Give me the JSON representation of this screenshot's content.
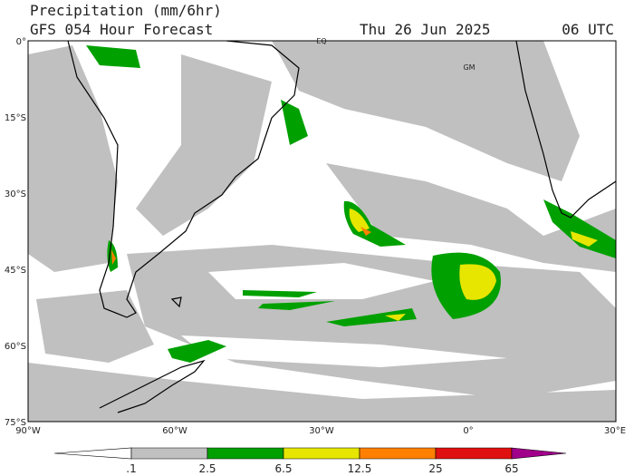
{
  "header": {
    "title": "Precipitation (mm/6hr)",
    "subtitle": "GFS 054 Hour Forecast",
    "date": "Thu 26 Jun 2025",
    "time": "06 UTC"
  },
  "map": {
    "lat_labels": [
      "0°",
      "15°S",
      "30°S",
      "45°S",
      "60°S",
      "75°S"
    ],
    "lon_labels": [
      "90°W",
      "60°W",
      "30°W",
      "0°",
      "30°E"
    ],
    "place_labels": [
      "EQ",
      "GM"
    ]
  },
  "colorbar": {
    "labels": [
      ".1",
      "2.5",
      "6.5",
      "12.5",
      "25",
      "65"
    ],
    "colors": [
      "#ffffff",
      "#c0c0c0",
      "#00a000",
      "#e6e600",
      "#ff8000",
      "#e01010",
      "#a0008a"
    ]
  }
}
